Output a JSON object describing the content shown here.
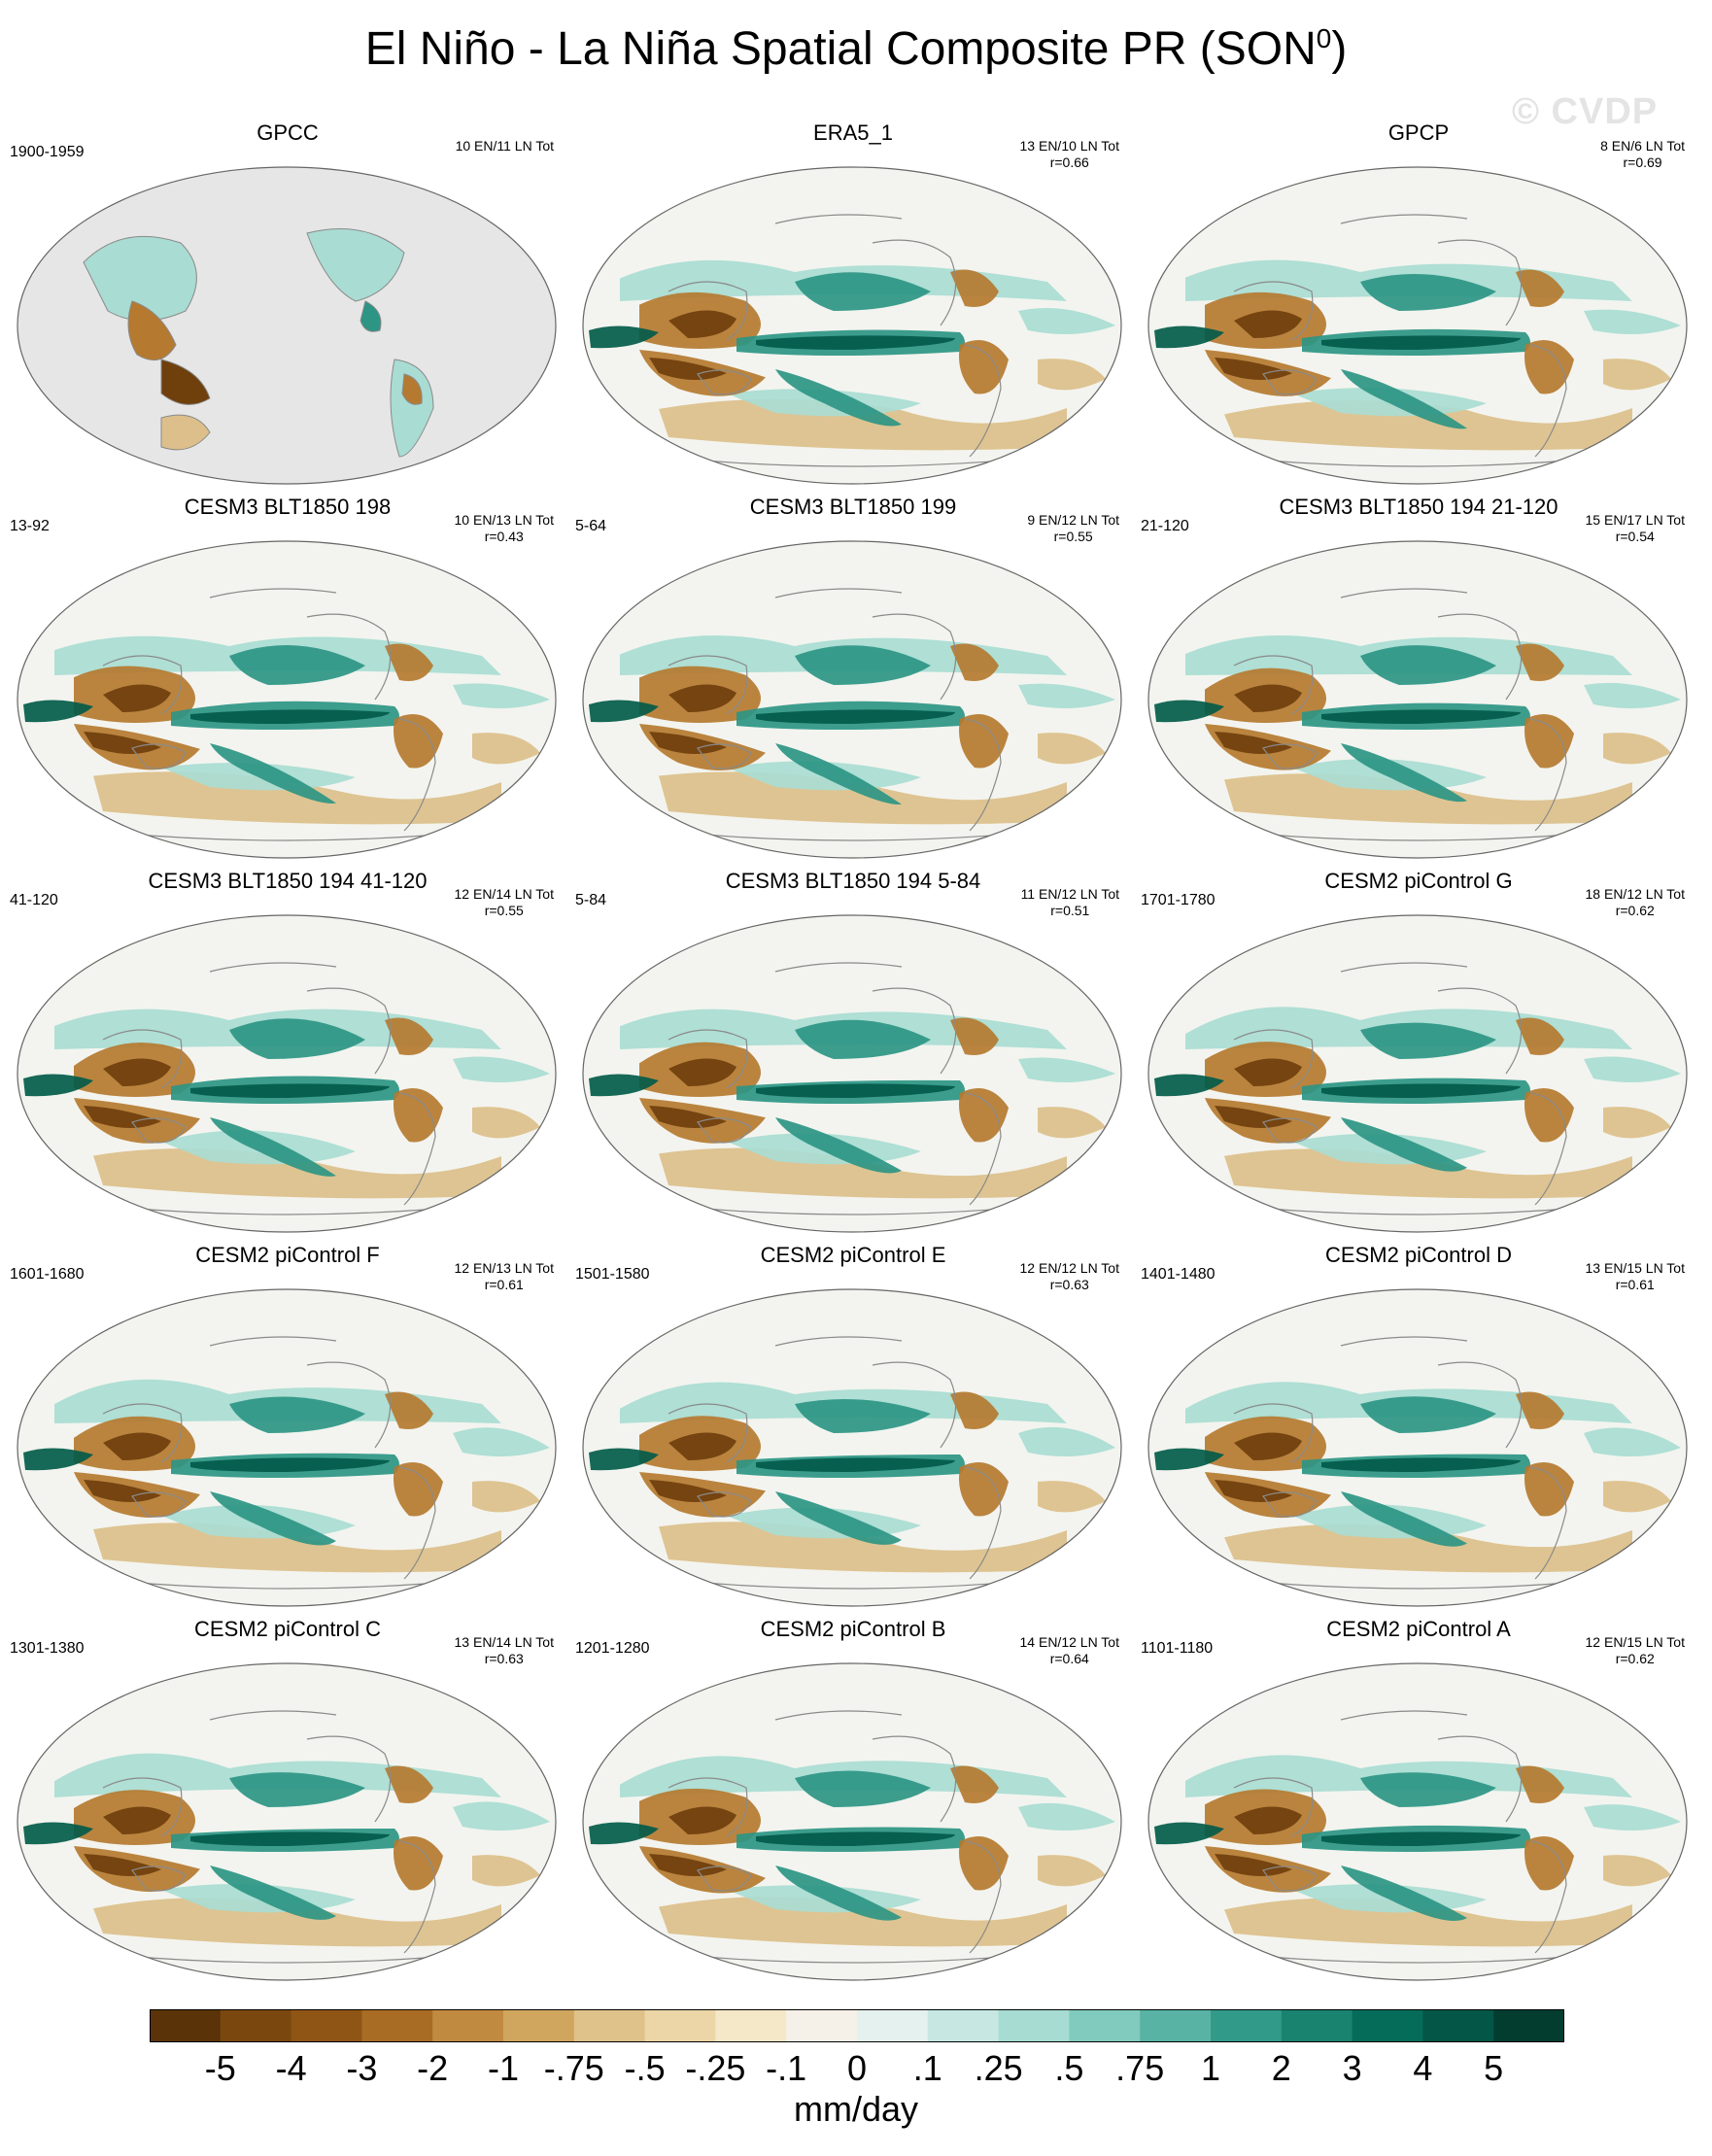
{
  "figure": {
    "title": "El Niño - La Niña Spatial Composite PR (SON",
    "title_superscript": "0",
    "title_suffix": ")",
    "watermark": "© CVDP"
  },
  "panels": [
    {
      "title": "GPCC",
      "period": "1900-1959",
      "events": "10 EN/11 LN Tot",
      "r": "",
      "style": "obs_land"
    },
    {
      "title": "ERA5_1",
      "period": "",
      "events": "13 EN/10 LN Tot",
      "r": "r=0.66",
      "style": "reanalysis"
    },
    {
      "title": "GPCP",
      "period": "",
      "events": "8 EN/6 LN Tot",
      "r": "r=0.69",
      "style": "reanalysis"
    },
    {
      "title": "CESM3 BLT1850 198",
      "period": "13-92",
      "events": "10 EN/13 LN Tot",
      "r": "r=0.43",
      "style": "model"
    },
    {
      "title": "CESM3 BLT1850 199",
      "period": "5-64",
      "events": "9 EN/12 LN Tot",
      "r": "r=0.55",
      "style": "model"
    },
    {
      "title": "CESM3 BLT1850 194 21-120",
      "period": "21-120",
      "events": "15 EN/17 LN Tot",
      "r": "r=0.54",
      "style": "model"
    },
    {
      "title": "CESM3 BLT1850 194 41-120",
      "period": "41-120",
      "events": "12 EN/14 LN Tot",
      "r": "r=0.55",
      "style": "model"
    },
    {
      "title": "CESM3 BLT1850 194 5-84",
      "period": "5-84",
      "events": "11 EN/12 LN Tot",
      "r": "r=0.51",
      "style": "model"
    },
    {
      "title": "CESM2 piControl G",
      "period": "1701-1780",
      "events": "18 EN/12 LN Tot",
      "r": "r=0.62",
      "style": "model"
    },
    {
      "title": "CESM2 piControl F",
      "period": "1601-1680",
      "events": "12 EN/13 LN Tot",
      "r": "r=0.61",
      "style": "model"
    },
    {
      "title": "CESM2 piControl E",
      "period": "1501-1580",
      "events": "12 EN/12 LN Tot",
      "r": "r=0.63",
      "style": "model"
    },
    {
      "title": "CESM2 piControl D",
      "period": "1401-1480",
      "events": "13 EN/15 LN Tot",
      "r": "r=0.61",
      "style": "model"
    },
    {
      "title": "CESM2 piControl C",
      "period": "1301-1380",
      "events": "13 EN/14 LN Tot",
      "r": "r=0.63",
      "style": "model"
    },
    {
      "title": "CESM2 piControl B",
      "period": "1201-1280",
      "events": "14 EN/12 LN Tot",
      "r": "r=0.64",
      "style": "model"
    },
    {
      "title": "CESM2 piControl A",
      "period": "1101-1180",
      "events": "12 EN/15 LN Tot",
      "r": "r=0.62",
      "style": "model"
    }
  ],
  "colorbar": {
    "units": "mm/day",
    "colors": [
      "#5a3408",
      "#7a480f",
      "#8f5515",
      "#a86c24",
      "#c08a40",
      "#d0a55e",
      "#dfc18a",
      "#ecd6a8",
      "#f5e8c8",
      "#f6f1e8",
      "#e4f1ee",
      "#c7e8e2",
      "#a6dcd2",
      "#80cbbd",
      "#58b3a4",
      "#329a89",
      "#1a8370",
      "#066c5a",
      "#045746",
      "#023d30"
    ],
    "ticks": [
      "-5",
      "-4",
      "-3",
      "-2",
      "-1",
      "-.75",
      "-.5",
      "-.25",
      "-.1",
      "0",
      ".1",
      ".25",
      ".5",
      ".75",
      "1",
      "2",
      "3",
      "4",
      "5"
    ]
  },
  "map_colors": {
    "ocean_neutral": "#f3f4ef",
    "land_missing": "#e6e6e6",
    "coast": "#8a8a8a",
    "dry_strong": "#6f3f0c",
    "dry": "#b57a30",
    "dry_weak": "#dcbf8a",
    "wet_strong": "#035b4a",
    "wet": "#2c9584",
    "wet_weak": "#a9dcd3"
  }
}
